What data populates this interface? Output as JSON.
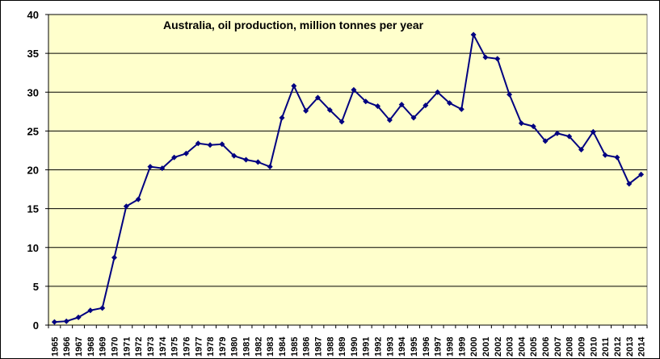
{
  "chart_data": {
    "type": "line",
    "title": "Australia, oil production, million tonnes per year",
    "xlabel": "",
    "ylabel": "",
    "ylim": [
      0,
      40
    ],
    "yticks": [
      0,
      5,
      10,
      15,
      20,
      25,
      30,
      35,
      40
    ],
    "grid": true,
    "legend": "none",
    "colors": {
      "plot_background": "#ffffcc",
      "line": "#000080",
      "marker": "#000080",
      "grid": "#000000"
    },
    "categories": [
      "1965",
      "1966",
      "1967",
      "1968",
      "1969",
      "1970",
      "1971",
      "1972",
      "1973",
      "1974",
      "1975",
      "1976",
      "1977",
      "1978",
      "1979",
      "1980",
      "1981",
      "1982",
      "1983",
      "1984",
      "1985",
      "1986",
      "1987",
      "1988",
      "1989",
      "1990",
      "1991",
      "1992",
      "1993",
      "1994",
      "1995",
      "1996",
      "1997",
      "1998",
      "1999",
      "2000",
      "2001",
      "2002",
      "2003",
      "2004",
      "2005",
      "2006",
      "2007",
      "2008",
      "2009",
      "2010",
      "2011",
      "2012",
      "2013",
      "2014"
    ],
    "series": [
      {
        "name": "",
        "values": [
          0.4,
          0.5,
          1.0,
          1.9,
          2.2,
          8.7,
          15.3,
          16.2,
          20.4,
          20.2,
          21.6,
          22.1,
          23.4,
          23.2,
          23.3,
          21.8,
          21.3,
          21.0,
          20.4,
          26.7,
          30.8,
          27.6,
          29.3,
          27.7,
          26.2,
          30.3,
          28.8,
          28.2,
          26.4,
          28.4,
          26.7,
          28.3,
          30.0,
          28.6,
          27.8,
          37.4,
          34.5,
          34.3,
          29.7,
          26.0,
          25.6,
          23.7,
          24.7,
          24.3,
          22.6,
          24.9,
          21.9,
          21.6,
          18.2,
          19.4
        ]
      }
    ]
  }
}
